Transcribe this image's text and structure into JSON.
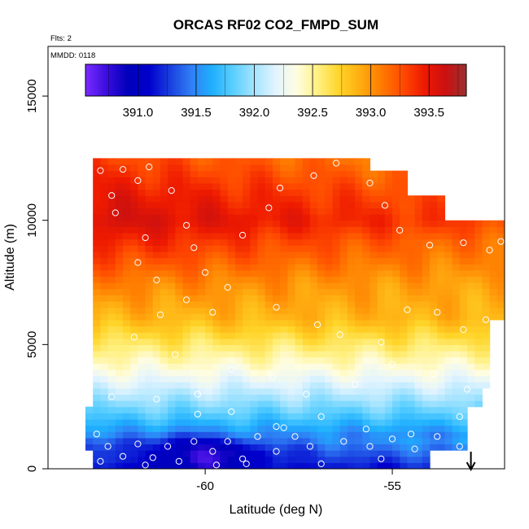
{
  "chart_data": {
    "type": "heatmap",
    "title": "ORCAS RF02 CO2_FMPD_SUM",
    "flights_label": "Flts: 2",
    "date_label": "MMDD: 0118",
    "xlabel": "Latitude (deg N)",
    "ylabel": "Altitude (m)",
    "xlim": [
      -64.2,
      -52.0
    ],
    "ylim": [
      0,
      17000
    ],
    "x_ticks": [
      -60,
      -55
    ],
    "x_tick_labels": [
      "-60",
      "-55"
    ],
    "y_ticks": [
      0,
      5000,
      10000,
      15000
    ],
    "y_tick_labels": [
      "0",
      "5000",
      "10000",
      "15000"
    ],
    "colorbar": {
      "range": [
        390.55,
        393.82
      ],
      "ticks": [
        391.0,
        391.5,
        392.0,
        392.5,
        393.0,
        393.5
      ],
      "tick_labels": [
        "391.0",
        "391.5",
        "392.0",
        "392.5",
        "393.0",
        "393.5"
      ],
      "colors": [
        "#7a2bff",
        "#3a0dde",
        "#0000bb",
        "#0000cc",
        "#1a3fe0",
        "#2f7ff5",
        "#1fb0ff",
        "#5ccfff",
        "#a6e4ff",
        "#e2f4ff",
        "#fffde0",
        "#fff080",
        "#ffd428",
        "#ffac10",
        "#ff7a00",
        "#ff4a00",
        "#ee1a00",
        "#cc1010",
        "#9c3030"
      ]
    },
    "profile": [
      {
        "alt": 0,
        "co2": 391.05
      },
      {
        "alt": 700,
        "co2": 391.3
      },
      {
        "alt": 1500,
        "co2": 391.55
      },
      {
        "alt": 2200,
        "co2": 391.8
      },
      {
        "alt": 3000,
        "co2": 392.05
      },
      {
        "alt": 4000,
        "co2": 392.35
      },
      {
        "alt": 5000,
        "co2": 392.6
      },
      {
        "alt": 6000,
        "co2": 392.85
      },
      {
        "alt": 7500,
        "co2": 393.1
      },
      {
        "alt": 9000,
        "co2": 393.45
      },
      {
        "alt": 10000,
        "co2": 393.65
      },
      {
        "alt": 11000,
        "co2": 393.55
      },
      {
        "alt": 12500,
        "co2": 393.35
      }
    ],
    "coverage": [
      {
        "alt": 0,
        "xmin": -62.9,
        "xmax": -53.9
      },
      {
        "alt": 600,
        "xmin": -63.2,
        "xmax": -52.9
      },
      {
        "alt": 2200,
        "xmin": -63.2,
        "xmax": -52.9
      },
      {
        "alt": 2400,
        "xmin": -62.9,
        "xmax": -52.6
      },
      {
        "alt": 3200,
        "xmin": -62.9,
        "xmax": -52.4
      },
      {
        "alt": 6000,
        "xmin": -62.9,
        "xmax": -52.0
      },
      {
        "alt": 7300,
        "xmin": -62.9,
        "xmax": -52.0
      },
      {
        "alt": 9300,
        "xmin": -62.9,
        "xmax": -51.9
      },
      {
        "alt": 10000,
        "xmin": -62.9,
        "xmax": -53.6
      },
      {
        "alt": 11000,
        "xmin": -62.9,
        "xmax": -54.5
      },
      {
        "alt": 12000,
        "xmin": -62.9,
        "xmax": -55.5
      },
      {
        "alt": 12450,
        "xmin": -57.8,
        "xmax": -55.5
      }
    ],
    "lowlevel_anomalies": [
      {
        "lat": -62.7,
        "alt": 300,
        "co2": 391.25
      },
      {
        "lat": -61.9,
        "alt": 600,
        "co2": 391.2
      },
      {
        "lat": -61.1,
        "alt": 300,
        "co2": 390.95
      },
      {
        "lat": -60.6,
        "alt": 800,
        "co2": 391.0
      },
      {
        "lat": -60.1,
        "alt": 450,
        "co2": 390.8
      },
      {
        "lat": -59.9,
        "alt": 300,
        "co2": 390.65
      },
      {
        "lat": -59.3,
        "alt": 500,
        "co2": 390.85
      },
      {
        "lat": -58.6,
        "alt": 300,
        "co2": 391.05
      },
      {
        "lat": -57.4,
        "alt": 400,
        "co2": 391.2
      }
    ],
    "samples": [
      {
        "lat": -62.8,
        "alt": 12000
      },
      {
        "lat": -62.2,
        "alt": 12050
      },
      {
        "lat": -61.5,
        "alt": 12150
      },
      {
        "lat": -61.8,
        "alt": 11600
      },
      {
        "lat": -60.9,
        "alt": 11200
      },
      {
        "lat": -62.5,
        "alt": 11000
      },
      {
        "lat": -62.4,
        "alt": 10300
      },
      {
        "lat": -60.5,
        "alt": 9800
      },
      {
        "lat": -61.6,
        "alt": 9300
      },
      {
        "lat": -60.3,
        "alt": 8900
      },
      {
        "lat": -59.0,
        "alt": 9400
      },
      {
        "lat": -58.3,
        "alt": 10500
      },
      {
        "lat": -58.0,
        "alt": 11300
      },
      {
        "lat": -57.1,
        "alt": 11800
      },
      {
        "lat": -56.5,
        "alt": 12300
      },
      {
        "lat": -55.6,
        "alt": 11500
      },
      {
        "lat": -55.2,
        "alt": 10600
      },
      {
        "lat": -54.8,
        "alt": 9600
      },
      {
        "lat": -54.0,
        "alt": 9000
      },
      {
        "lat": -53.1,
        "alt": 9100
      },
      {
        "lat": -52.4,
        "alt": 8800
      },
      {
        "lat": -52.1,
        "alt": 9150
      },
      {
        "lat": -61.8,
        "alt": 8300
      },
      {
        "lat": -61.3,
        "alt": 7600
      },
      {
        "lat": -60.0,
        "alt": 7900
      },
      {
        "lat": -59.4,
        "alt": 7300
      },
      {
        "lat": -60.5,
        "alt": 6800
      },
      {
        "lat": -61.2,
        "alt": 6200
      },
      {
        "lat": -59.8,
        "alt": 6300
      },
      {
        "lat": -58.1,
        "alt": 6500
      },
      {
        "lat": -57.0,
        "alt": 5800
      },
      {
        "lat": -56.4,
        "alt": 5400
      },
      {
        "lat": -55.3,
        "alt": 5100
      },
      {
        "lat": -54.6,
        "alt": 6400
      },
      {
        "lat": -53.8,
        "alt": 6300
      },
      {
        "lat": -53.1,
        "alt": 5600
      },
      {
        "lat": -52.5,
        "alt": 6000
      },
      {
        "lat": -61.9,
        "alt": 5300
      },
      {
        "lat": -60.8,
        "alt": 4600
      },
      {
        "lat": -59.3,
        "alt": 4000
      },
      {
        "lat": -58.2,
        "alt": 3700
      },
      {
        "lat": -57.3,
        "alt": 3000
      },
      {
        "lat": -56.0,
        "alt": 3400
      },
      {
        "lat": -55.0,
        "alt": 4200
      },
      {
        "lat": -53.9,
        "alt": 3800
      },
      {
        "lat": -53.0,
        "alt": 3200
      },
      {
        "lat": -62.5,
        "alt": 2900
      },
      {
        "lat": -61.3,
        "alt": 2800
      },
      {
        "lat": -60.2,
        "alt": 3000
      },
      {
        "lat": -59.3,
        "alt": 2300
      },
      {
        "lat": -58.1,
        "alt": 1700
      },
      {
        "lat": -56.9,
        "alt": 2100
      },
      {
        "lat": -55.7,
        "alt": 1600
      },
      {
        "lat": -54.5,
        "alt": 1400
      },
      {
        "lat": -53.2,
        "alt": 2100
      },
      {
        "lat": -62.9,
        "alt": 1400
      },
      {
        "lat": -62.6,
        "alt": 900
      },
      {
        "lat": -62.2,
        "alt": 500
      },
      {
        "lat": -61.8,
        "alt": 1000
      },
      {
        "lat": -61.4,
        "alt": 450
      },
      {
        "lat": -61.0,
        "alt": 900
      },
      {
        "lat": -60.7,
        "alt": 300
      },
      {
        "lat": -60.3,
        "alt": 1100
      },
      {
        "lat": -59.8,
        "alt": 700
      },
      {
        "lat": -59.4,
        "alt": 1100
      },
      {
        "lat": -59.0,
        "alt": 400
      },
      {
        "lat": -58.6,
        "alt": 1300
      },
      {
        "lat": -58.1,
        "alt": 700
      },
      {
        "lat": -57.6,
        "alt": 1300
      },
      {
        "lat": -57.2,
        "alt": 900
      },
      {
        "lat": -56.9,
        "alt": 200
      },
      {
        "lat": -56.3,
        "alt": 1100
      },
      {
        "lat": -55.6,
        "alt": 900
      },
      {
        "lat": -55.0,
        "alt": 1200
      },
      {
        "lat": -54.4,
        "alt": 800
      },
      {
        "lat": -53.8,
        "alt": 1300
      },
      {
        "lat": -53.2,
        "alt": 900
      },
      {
        "lat": -62.8,
        "alt": 300
      },
      {
        "lat": -61.6,
        "alt": 150
      },
      {
        "lat": -59.7,
        "alt": 150
      },
      {
        "lat": -58.9,
        "alt": 200
      },
      {
        "lat": -55.3,
        "alt": 400
      },
      {
        "lat": -57.9,
        "alt": 1650
      },
      {
        "lat": -60.2,
        "alt": 2200
      }
    ],
    "marker_lat": -52.9
  }
}
